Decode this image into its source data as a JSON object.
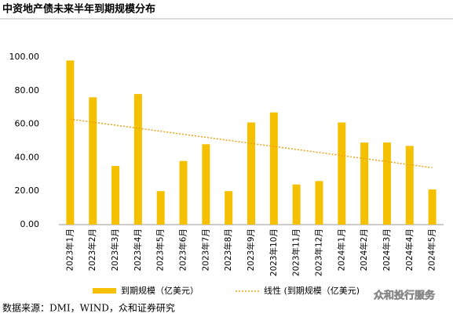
{
  "chart_data": {
    "type": "bar",
    "title": "中资地产债未来半年到期规模分布",
    "categories": [
      "2023年1月",
      "2023年2月",
      "2023年3月",
      "2023年4月",
      "2023年5月",
      "2023年6月",
      "2023年7月",
      "2023年8月",
      "2023年9月",
      "2023年10月",
      "2023年11月",
      "2023年12月",
      "2024年1月",
      "2024年2月",
      "2024年3月",
      "2024年4月",
      "2024年5月"
    ],
    "series": [
      {
        "name": "到期规模（亿美元）",
        "color": "#f5c000",
        "type": "bar",
        "values": [
          98,
          76,
          35,
          78,
          20,
          38,
          48,
          20,
          61,
          67,
          24,
          26,
          61,
          49,
          49,
          47,
          21
        ]
      },
      {
        "name": "线性 (到期规模（亿美元)",
        "color": "#e8a317",
        "type": "line",
        "values": [
          63,
          61.19,
          59.38,
          57.56,
          55.75,
          53.94,
          52.13,
          50.31,
          48.5,
          46.69,
          44.88,
          43.06,
          41.25,
          39.44,
          37.63,
          35.81,
          34
        ]
      }
    ],
    "ylim": [
      0,
      100
    ],
    "yticks": [
      {
        "value": 0,
        "label": "0.00"
      },
      {
        "value": 20,
        "label": "20.00"
      },
      {
        "value": 40,
        "label": "40.00"
      },
      {
        "value": 60,
        "label": "60.00"
      },
      {
        "value": 80,
        "label": "80.00"
      },
      {
        "value": 100,
        "label": "100.00"
      }
    ],
    "source": "数据来源：DMI，WIND，众和证券研究",
    "watermark": "众和投行服务"
  }
}
